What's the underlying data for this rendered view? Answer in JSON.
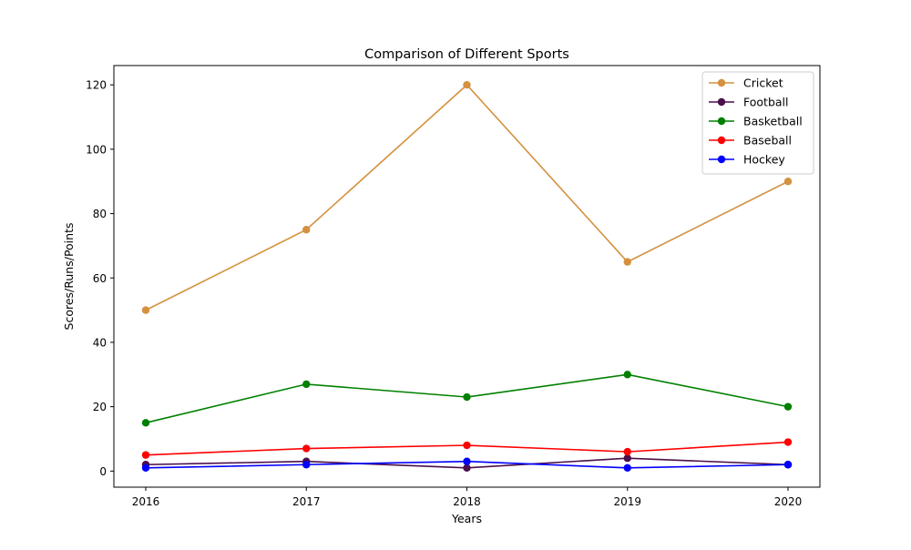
{
  "chart_data": {
    "type": "line",
    "title": "Comparison of Different Sports",
    "xlabel": "Years",
    "ylabel": "Scores/Runs/Points",
    "categories": [
      "2016",
      "2017",
      "2018",
      "2019",
      "2020"
    ],
    "y_ticks": [
      0,
      20,
      40,
      60,
      80,
      100,
      120
    ],
    "ylim": [
      -5,
      126
    ],
    "grid": false,
    "legend_position": "top-right",
    "series": [
      {
        "name": "Cricket",
        "color": "#d4913f",
        "values": [
          50,
          75,
          120,
          65,
          90
        ]
      },
      {
        "name": "Football",
        "color": "#4b0f4b",
        "values": [
          2,
          3,
          1,
          4,
          2
        ]
      },
      {
        "name": "Basketball",
        "color": "#008000",
        "values": [
          15,
          27,
          23,
          30,
          20
        ]
      },
      {
        "name": "Baseball",
        "color": "#ff0000",
        "values": [
          5,
          7,
          8,
          6,
          9
        ]
      },
      {
        "name": "Hockey",
        "color": "#0000ff",
        "values": [
          1,
          2,
          3,
          1,
          2
        ]
      }
    ]
  }
}
